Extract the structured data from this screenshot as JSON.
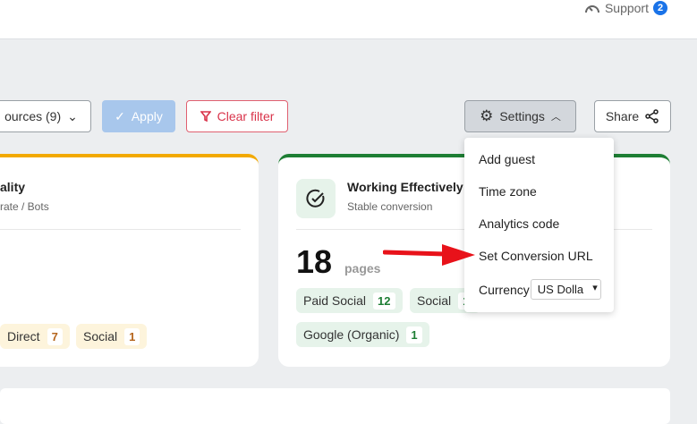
{
  "header": {
    "support_label": "Support",
    "support_count": "2"
  },
  "filters": {
    "sources_label": "ources (9)",
    "apply_label": "Apply",
    "clear_label": "Clear filter",
    "settings_label": "Settings",
    "share_label": "Share"
  },
  "card_left": {
    "title": "ality",
    "subtitle": "rate / Bots",
    "chips": [
      {
        "label": "Direct",
        "count": "7"
      },
      {
        "label": "Social",
        "count": "1"
      }
    ],
    "accent": "#f2a900"
  },
  "card_right": {
    "title": "Working Effectively",
    "subtitle": "Stable conversion",
    "count": "18",
    "unit": "pages",
    "chips": [
      {
        "label": "Paid Social",
        "count": "12"
      },
      {
        "label": "Social",
        "count": "1"
      },
      {
        "label": "Google (Organic)",
        "count": "1"
      }
    ],
    "accent": "#1e7e34"
  },
  "settings_menu": {
    "items": [
      "Add guest",
      "Time zone",
      "Analytics code",
      "Set Conversion URL"
    ],
    "currency_label": "Currency",
    "currency_value": "US Dolla"
  },
  "annotation": {
    "arrow_color": "#e8121a"
  }
}
